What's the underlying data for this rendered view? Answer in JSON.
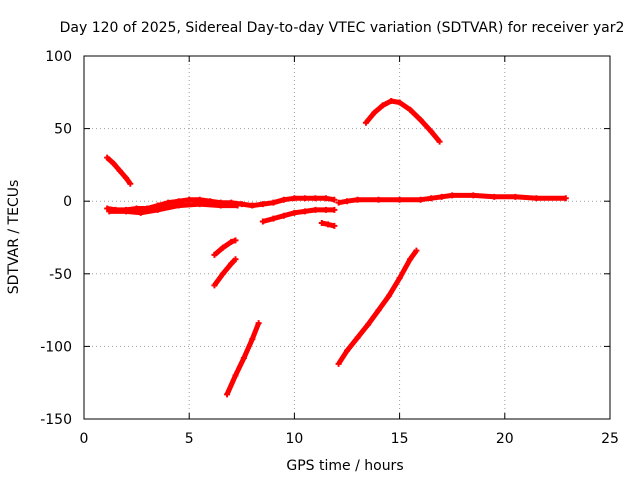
{
  "chart_data": {
    "type": "scatter",
    "title": "Day 120 of 2025, Sidereal Day-to-day VTEC variation (SDTVAR) for receiver yar2",
    "xlabel": "GPS time / hours",
    "ylabel": "SDTVAR / TECUs",
    "xlim": [
      0,
      25
    ],
    "ylim": [
      -150,
      100
    ],
    "xticks": [
      0,
      5,
      10,
      15,
      20,
      25
    ],
    "yticks": [
      -150,
      -100,
      -50,
      0,
      50,
      100
    ],
    "xtick_labels": [
      "0",
      "5",
      "10",
      "15",
      "20",
      "25"
    ],
    "ytick_labels": [
      "-150",
      "-100",
      "-50",
      "0",
      "50",
      "100"
    ],
    "grid": true,
    "color": "#ff0000",
    "series": [
      {
        "name": "main-band",
        "points": [
          [
            1.1,
            -5
          ],
          [
            1.5,
            -6
          ],
          [
            2.0,
            -6
          ],
          [
            2.5,
            -5
          ],
          [
            3.0,
            -5
          ],
          [
            3.5,
            -3
          ],
          [
            4.0,
            -1
          ],
          [
            4.5,
            0
          ],
          [
            5.0,
            1
          ],
          [
            5.5,
            1
          ],
          [
            6.0,
            0
          ],
          [
            6.5,
            -1
          ],
          [
            7.0,
            -1
          ],
          [
            7.5,
            -2
          ],
          [
            8.0,
            -3
          ],
          [
            8.5,
            -2
          ],
          [
            9.0,
            -1
          ],
          [
            9.5,
            1
          ],
          [
            10.0,
            2
          ],
          [
            10.5,
            2
          ],
          [
            11.0,
            2
          ],
          [
            11.5,
            2
          ],
          [
            11.9,
            1
          ]
        ]
      },
      {
        "name": "main-band-lower",
        "points": [
          [
            1.2,
            -7
          ],
          [
            2.0,
            -7
          ],
          [
            2.7,
            -8
          ],
          [
            3.5,
            -6
          ],
          [
            4.5,
            -3
          ],
          [
            5.5,
            -2
          ],
          [
            6.5,
            -3
          ],
          [
            7.3,
            -3
          ]
        ]
      },
      {
        "name": "main-band-late",
        "points": [
          [
            12.1,
            -1
          ],
          [
            12.5,
            0
          ],
          [
            13.0,
            1
          ],
          [
            14.0,
            1
          ],
          [
            15.0,
            1
          ],
          [
            16.0,
            1
          ],
          [
            16.5,
            2
          ],
          [
            17.0,
            3
          ],
          [
            17.5,
            4
          ],
          [
            18.5,
            4
          ],
          [
            19.5,
            3
          ],
          [
            20.5,
            3
          ],
          [
            21.5,
            2
          ],
          [
            22.9,
            2
          ]
        ]
      },
      {
        "name": "early-decay",
        "points": [
          [
            1.1,
            30
          ],
          [
            1.4,
            26
          ],
          [
            1.7,
            21
          ],
          [
            2.0,
            16
          ],
          [
            2.2,
            12
          ]
        ]
      },
      {
        "name": "afternoon-dip",
        "points": [
          [
            8.5,
            -14
          ],
          [
            9.0,
            -12
          ],
          [
            9.5,
            -10
          ],
          [
            10.0,
            -8
          ],
          [
            10.5,
            -7
          ],
          [
            11.0,
            -6
          ],
          [
            11.5,
            -6
          ],
          [
            11.9,
            -6
          ]
        ]
      },
      {
        "name": "short-drop",
        "points": [
          [
            11.3,
            -15
          ],
          [
            11.6,
            -16
          ],
          [
            11.9,
            -17
          ]
        ]
      },
      {
        "name": "arc-top",
        "points": [
          [
            13.4,
            54
          ],
          [
            13.8,
            61
          ],
          [
            14.2,
            66
          ],
          [
            14.6,
            69
          ],
          [
            15.0,
            68
          ],
          [
            15.5,
            63
          ],
          [
            16.0,
            56
          ],
          [
            16.5,
            48
          ],
          [
            16.9,
            41
          ]
        ]
      },
      {
        "name": "seg-a",
        "points": [
          [
            6.2,
            -37
          ],
          [
            6.6,
            -32
          ],
          [
            7.0,
            -28
          ],
          [
            7.2,
            -27
          ]
        ]
      },
      {
        "name": "seg-b",
        "points": [
          [
            6.2,
            -58
          ],
          [
            6.6,
            -50
          ],
          [
            7.0,
            -43
          ],
          [
            7.2,
            -40
          ]
        ]
      },
      {
        "name": "steep-rise-1",
        "points": [
          [
            6.8,
            -133
          ],
          [
            7.2,
            -120
          ],
          [
            7.6,
            -108
          ],
          [
            8.0,
            -95
          ],
          [
            8.3,
            -84
          ]
        ]
      },
      {
        "name": "steep-rise-2",
        "points": [
          [
            12.1,
            -112
          ],
          [
            12.5,
            -103
          ],
          [
            13.0,
            -94
          ],
          [
            13.5,
            -85
          ],
          [
            14.0,
            -75
          ],
          [
            14.5,
            -65
          ],
          [
            15.0,
            -53
          ],
          [
            15.5,
            -40
          ],
          [
            15.8,
            -34
          ]
        ]
      }
    ]
  }
}
